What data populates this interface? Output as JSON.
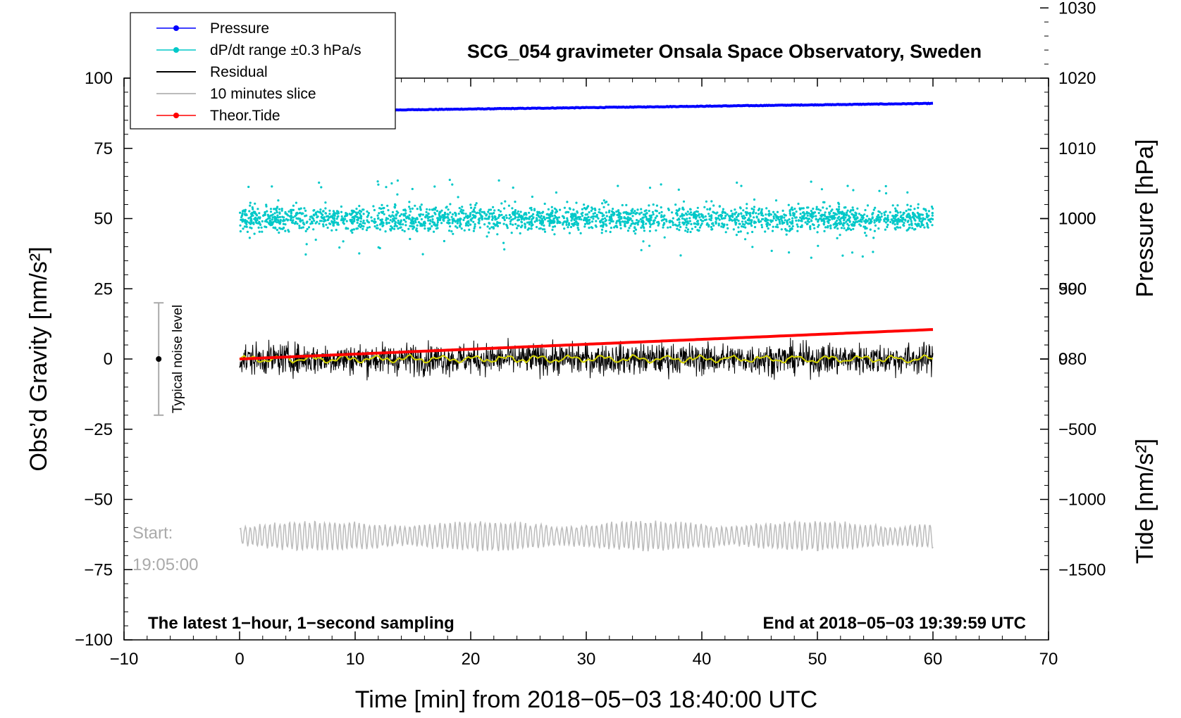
{
  "chart_data": {
    "type": "line",
    "title": "SCG_054 gravimeter Onsala Space Observatory, Sweden",
    "xlabel": "Time [min] from 2018−05−03 18:40:00 UTC",
    "ylabel": "Obs’d Gravity [nm/s²]",
    "ylabel_right_top": "Pressure [hPa]",
    "ylabel_right_bottom": "Tide [nm/s²]",
    "xlim": [
      -10,
      70
    ],
    "ylim": [
      -100,
      100
    ],
    "x_ticks": [
      "−10",
      "0",
      "10",
      "20",
      "30",
      "40",
      "50",
      "60",
      "70"
    ],
    "y_ticks": [
      "100",
      "75",
      "50",
      "25",
      "0",
      "−25",
      "−50",
      "−75",
      "−100"
    ],
    "pressure_axis": {
      "range": [
        970,
        1030
      ],
      "ticks": [
        "1030",
        "1020",
        "1010",
        "1000",
        "990",
        "980"
      ]
    },
    "tide_axis": {
      "range": [
        -1500,
        1500
      ],
      "ticks": [
        "1000",
        "500",
        "0",
        "−500",
        "−1000",
        "−1500"
      ]
    },
    "series": [
      {
        "name": "Pressure",
        "color": "#0000ff",
        "x": [
          0,
          60
        ],
        "values": [
          1015.2,
          1016.4
        ],
        "axis": "pressure"
      },
      {
        "name": "dP/dt range ±0.3 hPa/s",
        "color": "#00c8c8",
        "center": 50,
        "spread": 3,
        "axis": "gravity"
      },
      {
        "name": "Residual",
        "color": "#000000",
        "center": 0,
        "spread": 4,
        "axis": "gravity"
      },
      {
        "name": "10 minutes slice",
        "color": "#bbbbbb",
        "center": -63,
        "amplitude": 4,
        "axis": "gravity"
      },
      {
        "name": "Theor.Tide",
        "color": "#ff0000",
        "x": [
          0,
          60
        ],
        "values": [
          0,
          210
        ],
        "axis": "tide"
      }
    ],
    "legend": {
      "placement": "top-left",
      "entries": [
        "Pressure",
        "dP/dt range ±0.3 hPa/s",
        "Residual",
        "10 minutes slice",
        "Theor.Tide"
      ]
    },
    "noise_bar": {
      "label": "Typical noise level",
      "x": -7,
      "low": -20,
      "high": 20
    },
    "annotations": {
      "left_note": "The latest 1−hour, 1−second sampling",
      "right_note": "End at 2018−05−03 19:39:59 UTC",
      "start_label": "Start:",
      "start_time": "19:05:00"
    },
    "colors": {
      "residual_smooth": "#d4d400"
    }
  }
}
